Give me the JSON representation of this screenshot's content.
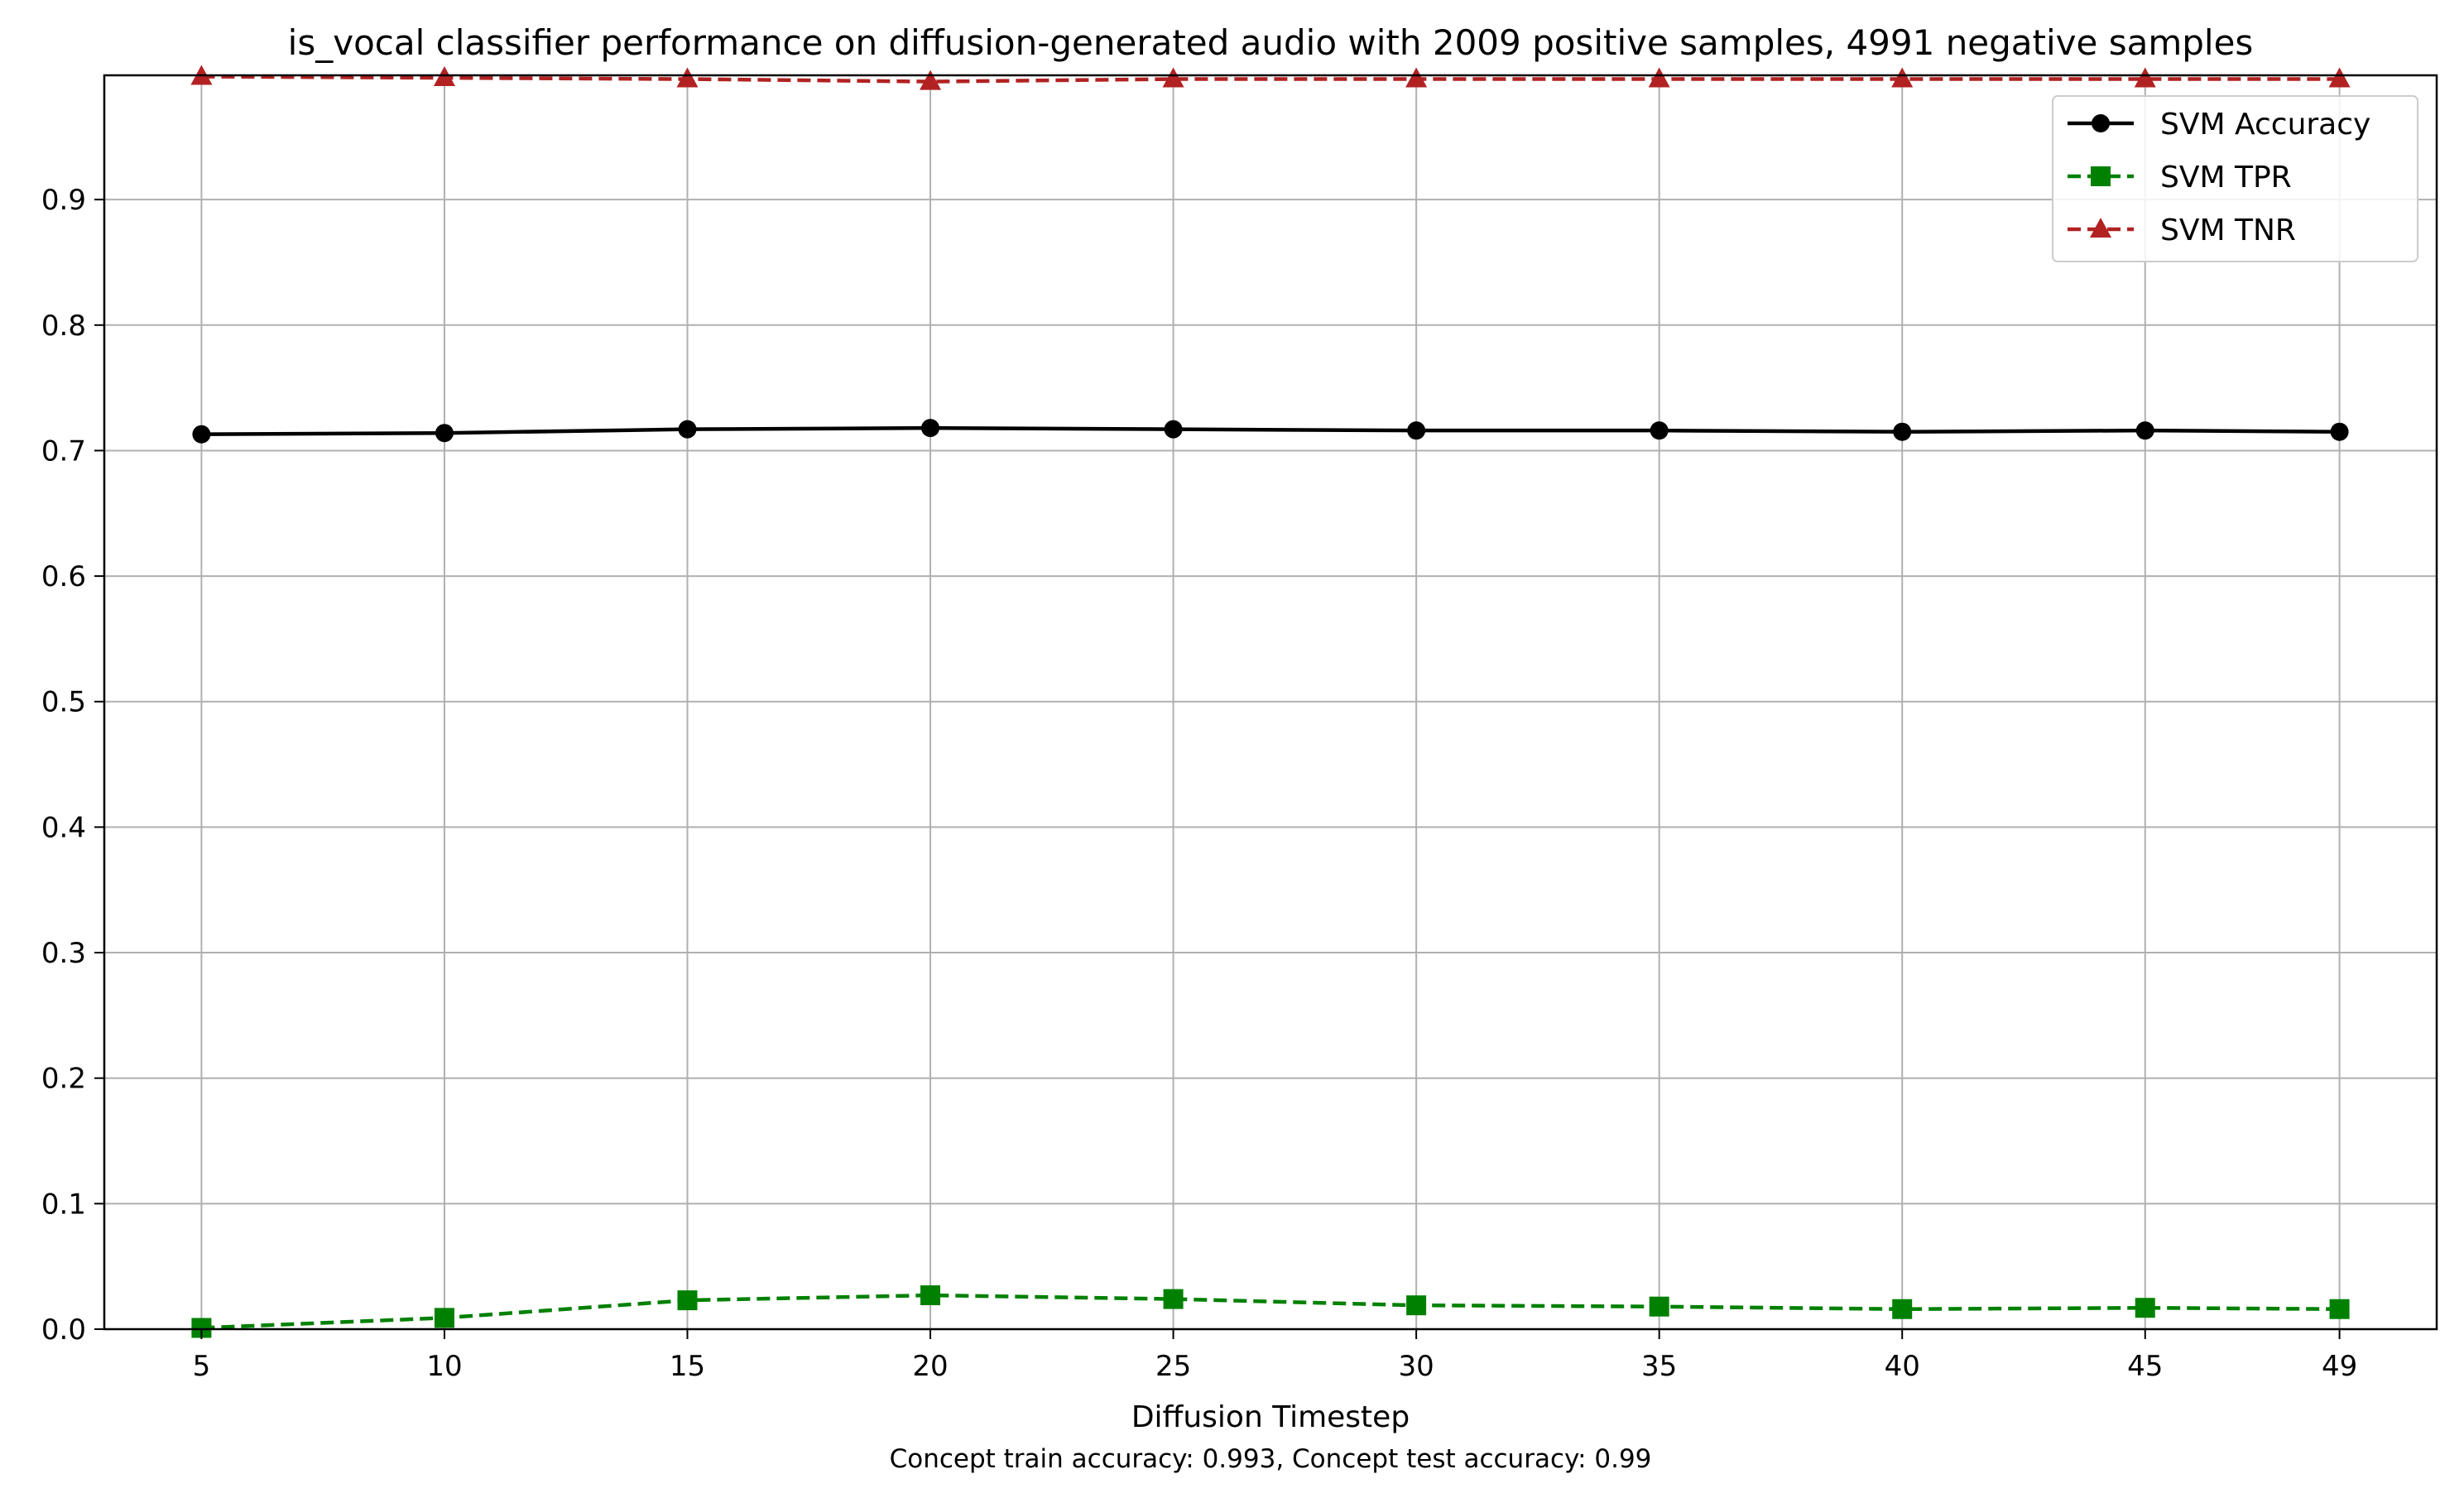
{
  "chart_data": {
    "type": "line",
    "title": "is_vocal classifier performance on diffusion-generated audio with 2009 positive samples, 4991 negative samples",
    "xlabel": "Diffusion Timestep",
    "ylabel": "",
    "note": "Concept train accuracy: 0.993, Concept test accuracy: 0.99",
    "x": [
      5,
      10,
      15,
      20,
      25,
      30,
      35,
      40,
      45,
      49
    ],
    "xticks": [
      5,
      10,
      15,
      20,
      25,
      30,
      35,
      40,
      45,
      49
    ],
    "yticks": [
      0.0,
      0.1,
      0.2,
      0.3,
      0.4,
      0.5,
      0.6,
      0.7,
      0.8,
      0.9
    ],
    "ytick_labels": [
      "0.0",
      "0.1",
      "0.2",
      "0.3",
      "0.4",
      "0.5",
      "0.6",
      "0.7",
      "0.8",
      "0.9"
    ],
    "xlim": [
      3.0,
      51.0
    ],
    "ylim": [
      0.0,
      0.999
    ],
    "grid": true,
    "legend_position": "top-right",
    "series": [
      {
        "name": "SVM Accuracy",
        "color": "#000000",
        "line_style": "solid",
        "marker": "circle",
        "values": [
          0.713,
          0.714,
          0.717,
          0.718,
          0.717,
          0.716,
          0.716,
          0.715,
          0.716,
          0.715
        ]
      },
      {
        "name": "SVM TPR",
        "color": "#008000",
        "line_style": "dashed",
        "marker": "square",
        "values": [
          0.001,
          0.009,
          0.023,
          0.027,
          0.024,
          0.019,
          0.018,
          0.016,
          0.017,
          0.016
        ]
      },
      {
        "name": "SVM TNR",
        "color": "#b22222",
        "line_style": "dashed",
        "marker": "triangle",
        "values": [
          0.998,
          0.997,
          0.996,
          0.994,
          0.996,
          0.996,
          0.996,
          0.996,
          0.996,
          0.996
        ]
      }
    ]
  }
}
